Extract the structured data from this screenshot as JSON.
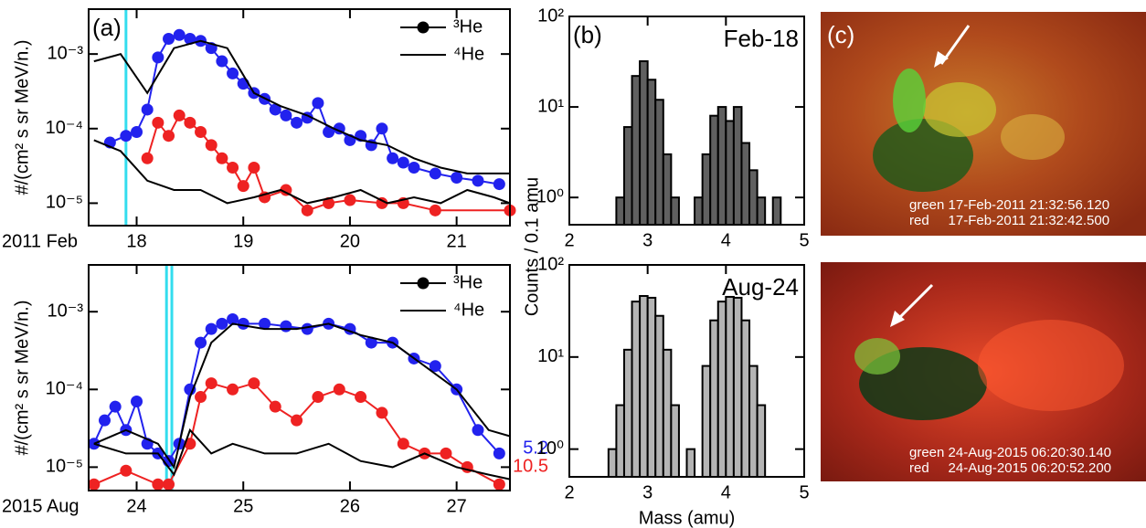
{
  "chart_data": [
    {
      "type": "line",
      "panel_label": "(a)",
      "ylabel": "#/(cm² s sr MeV/n.)",
      "xlabel": "2011 Feb",
      "xlim": [
        17.55,
        21.5
      ],
      "xticks": [
        18,
        19,
        20,
        21
      ],
      "log_y": true,
      "ylim": [
        5e-06,
        0.004
      ],
      "yticks": [
        {
          "value": 1e-05,
          "label": "10⁻⁵"
        },
        {
          "value": 0.0001,
          "label": "10⁻⁴"
        },
        {
          "value": 0.001,
          "label": "10⁻³"
        }
      ],
      "vlines": [
        {
          "x": 17.9,
          "color": "#33ddee"
        }
      ],
      "legend": [
        {
          "label": "³He",
          "marker": "circle"
        },
        {
          "label": "⁴He",
          "marker": "none"
        }
      ],
      "series": [
        {
          "color": "#2222ee",
          "marker": "circle",
          "x": [
            17.75,
            17.9,
            18.0,
            18.1,
            18.2,
            18.3,
            18.4,
            18.5,
            18.6,
            18.7,
            18.8,
            18.9,
            19.0,
            19.1,
            19.2,
            19.3,
            19.4,
            19.5,
            19.6,
            19.7,
            19.8,
            19.9,
            20.0,
            20.1,
            20.2,
            20.3,
            20.4,
            20.5,
            20.6,
            20.8,
            21.0,
            21.2,
            21.4
          ],
          "values": [
            6.5e-05,
            8e-05,
            9e-05,
            0.00018,
            0.0009,
            0.0016,
            0.0018,
            0.0016,
            0.0015,
            0.0012,
            0.0008,
            0.00055,
            0.0004,
            0.0003,
            0.00025,
            0.00018,
            0.00015,
            0.00012,
            0.00014,
            0.00022,
            9e-05,
            0.0001,
            7e-05,
            8e-05,
            6e-05,
            0.0001,
            4e-05,
            3.5e-05,
            3e-05,
            2.5e-05,
            2.2e-05,
            2e-05,
            1.8e-05
          ]
        },
        {
          "color": "#ee2222",
          "marker": "circle",
          "x": [
            18.1,
            18.2,
            18.3,
            18.4,
            18.5,
            18.6,
            18.7,
            18.8,
            18.9,
            19.0,
            19.1,
            19.2,
            19.4,
            19.6,
            19.8,
            20.0,
            20.3,
            20.5,
            20.8,
            21.5
          ],
          "values": [
            4e-05,
            0.00012,
            8e-05,
            0.00015,
            0.00012,
            9e-05,
            6e-05,
            4e-05,
            3e-05,
            1.7e-05,
            3e-05,
            1.2e-05,
            1.5e-05,
            8e-06,
            1e-05,
            1.1e-05,
            1e-05,
            1e-05,
            8e-06,
            8e-06
          ]
        },
        {
          "color": "#000000",
          "marker": "none",
          "x": [
            17.6,
            17.85,
            18.1,
            18.35,
            18.6,
            18.85,
            19.1,
            19.35,
            19.6,
            19.85,
            20.1,
            20.35,
            20.6,
            20.85,
            21.1,
            21.35,
            21.5
          ],
          "values": [
            0.0008,
            0.001,
            0.0003,
            0.0012,
            0.0015,
            0.0012,
            0.0003,
            0.0002,
            0.00015,
            0.0001,
            7e-05,
            6e-05,
            4e-05,
            3e-05,
            2.5e-05,
            2.5e-05,
            2.5e-05
          ]
        },
        {
          "color": "#000000",
          "marker": "none",
          "x": [
            17.6,
            17.85,
            18.1,
            18.35,
            18.6,
            18.85,
            19.1,
            19.35,
            19.6,
            19.85,
            20.1,
            20.35,
            20.6,
            20.85,
            21.1,
            21.35,
            21.5
          ],
          "values": [
            7e-05,
            5e-05,
            2e-05,
            1.5e-05,
            1.5e-05,
            1e-05,
            1.2e-05,
            1.5e-05,
            1e-05,
            1.2e-05,
            1.5e-05,
            1e-05,
            1.2e-05,
            1e-05,
            1.5e-05,
            1.2e-05,
            1e-05
          ]
        }
      ]
    },
    {
      "type": "line",
      "ylabel": "#/(cm² s sr MeV/n.)",
      "xlabel": "2015 Aug",
      "xlim": [
        23.55,
        27.5
      ],
      "xticks": [
        24,
        25,
        26,
        27
      ],
      "log_y": true,
      "ylim": [
        5e-06,
        0.004
      ],
      "yticks": [
        {
          "value": 1e-05,
          "label": "10⁻⁵"
        },
        {
          "value": 0.0001,
          "label": "10⁻⁴"
        },
        {
          "value": 0.001,
          "label": "10⁻³"
        }
      ],
      "vlines": [
        {
          "x": 24.28,
          "color": "#33ddee"
        },
        {
          "x": 24.33,
          "color": "#33ddee"
        }
      ],
      "legend": [
        {
          "label": "³He",
          "marker": "circle"
        },
        {
          "label": "⁴He",
          "marker": "none"
        }
      ],
      "series": [
        {
          "color": "#2222ee",
          "marker": "circle",
          "label": "5.2",
          "x": [
            23.6,
            23.7,
            23.8,
            23.9,
            24.0,
            24.1,
            24.2,
            24.3,
            24.4,
            24.5,
            24.6,
            24.7,
            24.8,
            24.9,
            25.0,
            25.2,
            25.4,
            25.6,
            25.8,
            26.0,
            26.2,
            26.4,
            26.6,
            26.8,
            27.0,
            27.2,
            27.4
          ],
          "values": [
            2e-05,
            4e-05,
            6e-05,
            3e-05,
            7e-05,
            2e-05,
            1.5e-05,
            1.2e-05,
            2e-05,
            0.0001,
            0.0004,
            0.0006,
            0.0007,
            0.0008,
            0.0007,
            0.0007,
            0.00065,
            0.0006,
            0.0007,
            0.0006,
            0.0004,
            0.0004,
            0.00025,
            0.0002,
            0.0001,
            3e-05,
            1.5e-05
          ]
        },
        {
          "color": "#ee2222",
          "marker": "circle",
          "label": "10.5",
          "x": [
            23.6,
            23.9,
            24.2,
            24.3,
            24.5,
            24.6,
            24.7,
            24.9,
            25.1,
            25.3,
            25.5,
            25.7,
            25.9,
            26.1,
            26.3,
            26.5,
            26.7,
            26.9,
            27.1,
            27.4
          ],
          "values": [
            6e-06,
            9e-06,
            6e-06,
            6e-06,
            2e-05,
            8e-05,
            0.00012,
            0.0001,
            0.00012,
            6e-05,
            4e-05,
            8e-05,
            0.0001,
            8e-05,
            5e-05,
            2e-05,
            1.5e-05,
            1.5e-05,
            1e-05,
            6e-06
          ]
        },
        {
          "color": "#000000",
          "marker": "none",
          "x": [
            23.6,
            23.9,
            24.2,
            24.35,
            24.5,
            24.7,
            24.9,
            25.2,
            25.5,
            25.8,
            26.1,
            26.4,
            26.7,
            27.0,
            27.3,
            27.5
          ],
          "values": [
            2e-05,
            3e-05,
            2e-05,
            1e-05,
            8e-05,
            0.0004,
            0.0007,
            0.0006,
            0.0006,
            0.0007,
            0.0005,
            0.0004,
            0.0002,
            0.0001,
            3e-05,
            2.5e-05
          ]
        },
        {
          "color": "#000000",
          "marker": "none",
          "x": [
            23.6,
            23.9,
            24.2,
            24.35,
            24.5,
            24.7,
            24.9,
            25.2,
            25.5,
            25.8,
            26.1,
            26.4,
            26.7,
            27.0,
            27.3,
            27.5
          ],
          "values": [
            2e-05,
            1.5e-05,
            1.5e-05,
            8e-06,
            3e-05,
            1.5e-05,
            2e-05,
            1.5e-05,
            1.5e-05,
            2e-05,
            1.2e-05,
            1e-05,
            1.5e-05,
            1e-05,
            8e-06,
            7e-06
          ]
        }
      ]
    },
    {
      "type": "histogram",
      "panel_label": "(b)",
      "title": "Feb-18",
      "ylabel": "Counts / 0.1 amu",
      "color": "#606060",
      "xlim": [
        2,
        5
      ],
      "xticks": [
        2,
        3,
        4,
        5
      ],
      "log_y": true,
      "ylim": [
        0.5,
        100
      ],
      "yticks": [
        {
          "value": 1,
          "label": "10⁰"
        },
        {
          "value": 10,
          "label": "10¹"
        },
        {
          "value": 100,
          "label": "10²"
        }
      ],
      "bins": [
        2.6,
        2.7,
        2.8,
        2.9,
        3.0,
        3.1,
        3.2,
        3.3,
        3.4,
        3.5,
        3.6,
        3.7,
        3.8,
        3.9,
        4.0,
        4.1,
        4.2,
        4.3,
        4.4,
        4.5,
        4.6,
        4.7
      ],
      "values": [
        1,
        6,
        22,
        32,
        20,
        12,
        3,
        1,
        0,
        0,
        1,
        3,
        8,
        10,
        7,
        10,
        4,
        2,
        1,
        0,
        1
      ]
    },
    {
      "type": "histogram",
      "title": "Aug-24",
      "xlabel": "Mass (amu)",
      "color": "#b4b4b4",
      "xlim": [
        2,
        5
      ],
      "xticks": [
        2,
        3,
        4,
        5
      ],
      "log_y": true,
      "ylim": [
        0.5,
        100
      ],
      "yticks": [
        {
          "value": 1,
          "label": "10⁰"
        },
        {
          "value": 10,
          "label": "10¹"
        },
        {
          "value": 100,
          "label": "10²"
        }
      ],
      "bins": [
        2.5,
        2.6,
        2.7,
        2.8,
        2.9,
        3.0,
        3.1,
        3.2,
        3.3,
        3.4,
        3.5,
        3.6,
        3.7,
        3.8,
        3.9,
        4.0,
        4.1,
        4.2,
        4.3,
        4.4,
        4.5
      ],
      "values": [
        1,
        3,
        12,
        40,
        46,
        44,
        28,
        12,
        3,
        0,
        1,
        0,
        8,
        25,
        40,
        45,
        44,
        25,
        8,
        3
      ]
    }
  ],
  "images": [
    {
      "panel_label": "(c)",
      "green": "green 17-Feb-2011 21:32:56.120",
      "red": "red     17-Feb-2011 21:32:42.500"
    },
    {
      "green": "green 24-Aug-2015 06:20:30.140",
      "red": "red     24-Aug-2015 06:20:52.200"
    }
  ]
}
